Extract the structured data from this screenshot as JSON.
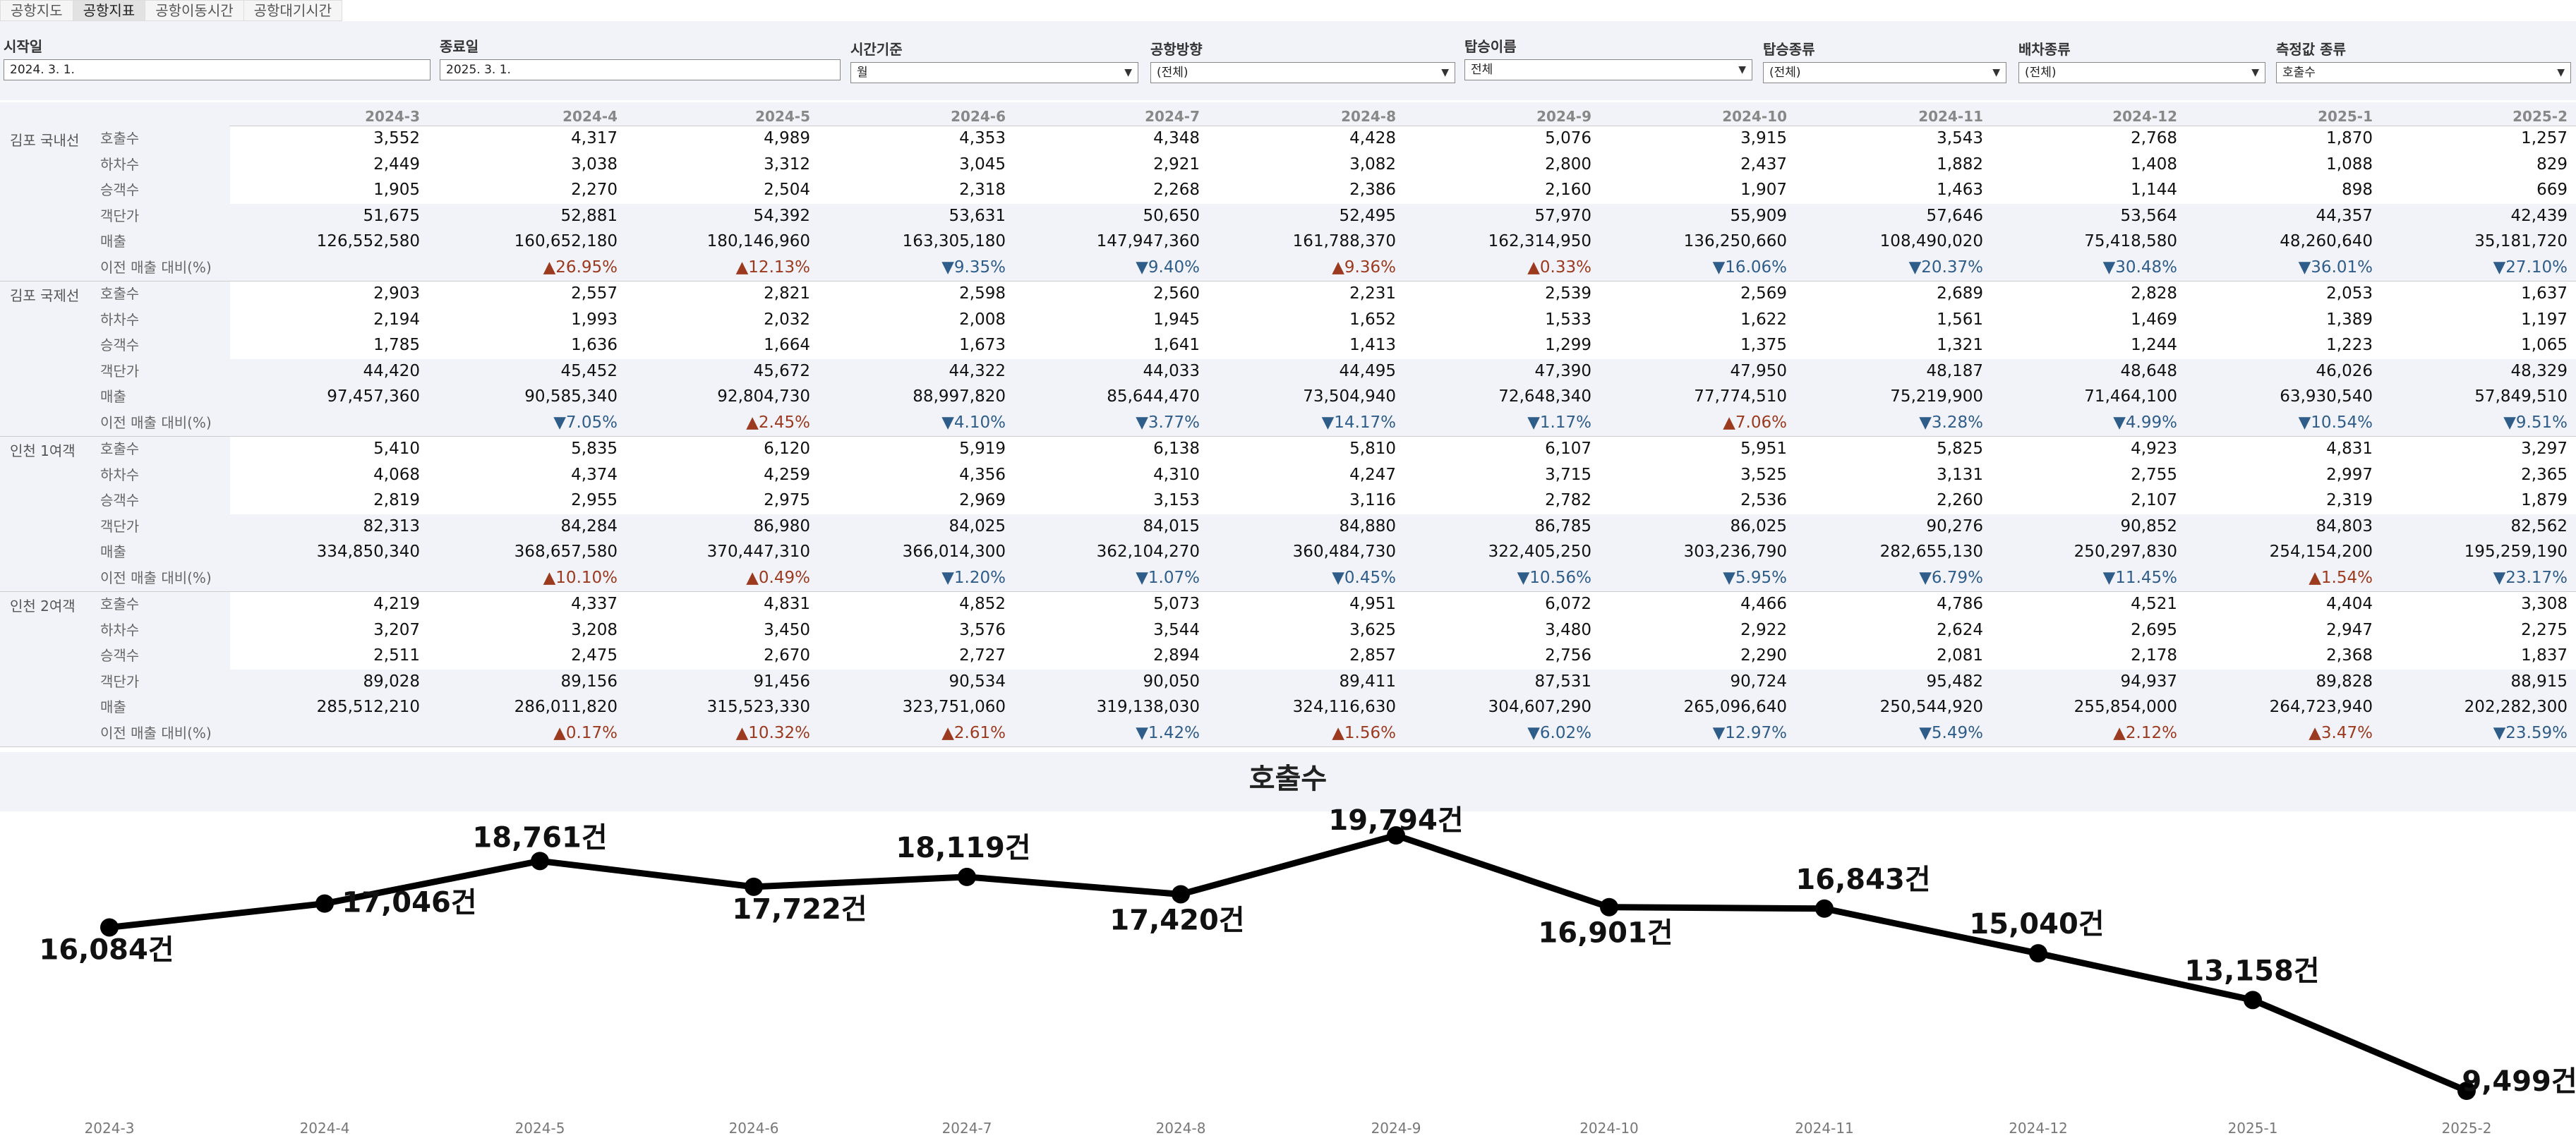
{
  "tabs": [
    {
      "label": "공항지도",
      "active": false
    },
    {
      "label": "공항지표",
      "active": true
    },
    {
      "label": "공항이동시간",
      "active": false
    },
    {
      "label": "공항대기시간",
      "active": false
    }
  ],
  "filters": {
    "start": {
      "label": "시작일",
      "value": "2024. 3. 1."
    },
    "end": {
      "label": "종료일",
      "value": "2025. 3. 1."
    },
    "time": {
      "label": "시간기준",
      "value": "월"
    },
    "direction": {
      "label": "공항방향",
      "value": "(전체)"
    },
    "name": {
      "label": "탑승이름",
      "value": "전체"
    },
    "type": {
      "label": "탑승종류",
      "value": "(전체)"
    },
    "vehicle": {
      "label": "배차종류",
      "value": "(전체)"
    },
    "measure": {
      "label": "측정값 종류",
      "value": "호출수"
    }
  },
  "table": {
    "columns": [
      "2024-3",
      "2024-4",
      "2024-5",
      "2024-6",
      "2024-7",
      "2024-8",
      "2024-9",
      "2024-10",
      "2024-11",
      "2024-12",
      "2025-1",
      "2025-2"
    ],
    "measures": [
      "호출수",
      "하차수",
      "승객수",
      "객단가",
      "매출",
      "이전 매출 대비(%)"
    ],
    "groups": [
      {
        "name": "김포 국내선",
        "rows": [
          [
            "3,552",
            "4,317",
            "4,989",
            "4,353",
            "4,348",
            "4,428",
            "5,076",
            "3,915",
            "3,543",
            "2,768",
            "1,870",
            "1,257"
          ],
          [
            "2,449",
            "3,038",
            "3,312",
            "3,045",
            "2,921",
            "3,082",
            "2,800",
            "2,437",
            "1,882",
            "1,408",
            "1,088",
            "829"
          ],
          [
            "1,905",
            "2,270",
            "2,504",
            "2,318",
            "2,268",
            "2,386",
            "2,160",
            "1,907",
            "1,463",
            "1,144",
            "898",
            "669"
          ],
          [
            "51,675",
            "52,881",
            "54,392",
            "53,631",
            "50,650",
            "52,495",
            "57,970",
            "55,909",
            "57,646",
            "53,564",
            "44,357",
            "42,439"
          ],
          [
            "126,552,580",
            "160,652,180",
            "180,146,960",
            "163,305,180",
            "147,947,360",
            "161,788,370",
            "162,314,950",
            "136,250,660",
            "108,490,020",
            "75,418,580",
            "48,260,640",
            "35,181,720"
          ],
          [
            "",
            "▲26.95%",
            "▲12.13%",
            "▼9.35%",
            "▼9.40%",
            "▲9.36%",
            "▲0.33%",
            "▼16.06%",
            "▼20.37%",
            "▼30.48%",
            "▼36.01%",
            "▼27.10%"
          ]
        ]
      },
      {
        "name": "김포 국제선",
        "rows": [
          [
            "2,903",
            "2,557",
            "2,821",
            "2,598",
            "2,560",
            "2,231",
            "2,539",
            "2,569",
            "2,689",
            "2,828",
            "2,053",
            "1,637"
          ],
          [
            "2,194",
            "1,993",
            "2,032",
            "2,008",
            "1,945",
            "1,652",
            "1,533",
            "1,622",
            "1,561",
            "1,469",
            "1,389",
            "1,197"
          ],
          [
            "1,785",
            "1,636",
            "1,664",
            "1,673",
            "1,641",
            "1,413",
            "1,299",
            "1,375",
            "1,321",
            "1,244",
            "1,223",
            "1,065"
          ],
          [
            "44,420",
            "45,452",
            "45,672",
            "44,322",
            "44,033",
            "44,495",
            "47,390",
            "47,950",
            "48,187",
            "48,648",
            "46,026",
            "48,329"
          ],
          [
            "97,457,360",
            "90,585,340",
            "92,804,730",
            "88,997,820",
            "85,644,470",
            "73,504,940",
            "72,648,340",
            "77,774,510",
            "75,219,900",
            "71,464,100",
            "63,930,540",
            "57,849,510"
          ],
          [
            "",
            "▼7.05%",
            "▲2.45%",
            "▼4.10%",
            "▼3.77%",
            "▼14.17%",
            "▼1.17%",
            "▲7.06%",
            "▼3.28%",
            "▼4.99%",
            "▼10.54%",
            "▼9.51%"
          ]
        ]
      },
      {
        "name": "인천 1여객",
        "rows": [
          [
            "5,410",
            "5,835",
            "6,120",
            "5,919",
            "6,138",
            "5,810",
            "6,107",
            "5,951",
            "5,825",
            "4,923",
            "4,831",
            "3,297"
          ],
          [
            "4,068",
            "4,374",
            "4,259",
            "4,356",
            "4,310",
            "4,247",
            "3,715",
            "3,525",
            "3,131",
            "2,755",
            "2,997",
            "2,365"
          ],
          [
            "2,819",
            "2,955",
            "2,975",
            "2,969",
            "3,153",
            "3,116",
            "2,782",
            "2,536",
            "2,260",
            "2,107",
            "2,319",
            "1,879"
          ],
          [
            "82,313",
            "84,284",
            "86,980",
            "84,025",
            "84,015",
            "84,880",
            "86,785",
            "86,025",
            "90,276",
            "90,852",
            "84,803",
            "82,562"
          ],
          [
            "334,850,340",
            "368,657,580",
            "370,447,310",
            "366,014,300",
            "362,104,270",
            "360,484,730",
            "322,405,250",
            "303,236,790",
            "282,655,130",
            "250,297,830",
            "254,154,200",
            "195,259,190"
          ],
          [
            "",
            "▲10.10%",
            "▲0.49%",
            "▼1.20%",
            "▼1.07%",
            "▼0.45%",
            "▼10.56%",
            "▼5.95%",
            "▼6.79%",
            "▼11.45%",
            "▲1.54%",
            "▼23.17%"
          ]
        ]
      },
      {
        "name": "인천 2여객",
        "rows": [
          [
            "4,219",
            "4,337",
            "4,831",
            "4,852",
            "5,073",
            "4,951",
            "6,072",
            "4,466",
            "4,786",
            "4,521",
            "4,404",
            "3,308"
          ],
          [
            "3,207",
            "3,208",
            "3,450",
            "3,576",
            "3,544",
            "3,625",
            "3,480",
            "2,922",
            "2,624",
            "2,695",
            "2,947",
            "2,275"
          ],
          [
            "2,511",
            "2,475",
            "2,670",
            "2,727",
            "2,894",
            "2,857",
            "2,756",
            "2,290",
            "2,081",
            "2,178",
            "2,368",
            "1,837"
          ],
          [
            "89,028",
            "89,156",
            "91,456",
            "90,534",
            "90,050",
            "89,411",
            "87,531",
            "90,724",
            "95,482",
            "94,937",
            "89,828",
            "88,915"
          ],
          [
            "285,512,210",
            "286,011,820",
            "315,523,330",
            "323,751,060",
            "319,138,030",
            "324,116,630",
            "304,607,290",
            "265,096,640",
            "250,544,920",
            "255,854,000",
            "264,723,940",
            "202,282,300"
          ],
          [
            "",
            "▲0.17%",
            "▲10.32%",
            "▲2.61%",
            "▼1.42%",
            "▲1.56%",
            "▼6.02%",
            "▼12.97%",
            "▼5.49%",
            "▲2.12%",
            "▲3.47%",
            "▼23.59%"
          ]
        ]
      }
    ]
  },
  "chart_data": {
    "type": "line",
    "title": "호출수",
    "x": [
      "2024-3",
      "2024-4",
      "2024-5",
      "2024-6",
      "2024-7",
      "2024-8",
      "2024-9",
      "2024-10",
      "2024-11",
      "2024-12",
      "2025-1",
      "2025-2"
    ],
    "series": [
      {
        "values": [
          16084,
          17046,
          18761,
          17722,
          18119,
          17420,
          19794,
          16901,
          16843,
          15040,
          13158,
          9499
        ]
      }
    ],
    "data_labels": [
      "16,084건",
      "17,046건",
      "18,761건",
      "17,722건",
      "18,119건",
      "17,420건",
      "19,794건",
      "16,901건",
      "16,843건",
      "15,040건",
      "13,158건",
      "9,499건"
    ],
    "grid": false,
    "line_color": "#000000"
  },
  "colors": {
    "up": "#9b3a1e",
    "down": "#2f5d8a",
    "panel": "#f2f3f8"
  }
}
